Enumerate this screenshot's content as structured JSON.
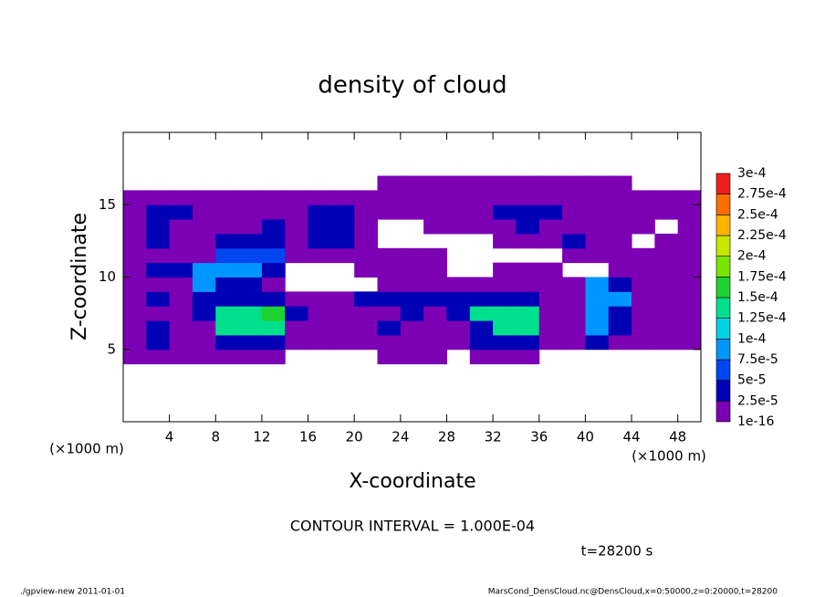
{
  "chart_data": {
    "type": "heatmap",
    "title": "density of cloud",
    "x_label": "X-coordinate",
    "y_label": "Z-coordinate",
    "x_unit": "(×1000 m)",
    "y_unit": "(×1000 m)",
    "contour_interval": "CONTOUR INTERVAL = 1.000E-04",
    "time_label": "t=28200 s",
    "footer_left": "./gpview-new   2011-01-01",
    "footer_right": "MarsCond_DensCloud.nc@DensCloud,x=0:50000,z=0:20000,t=28200",
    "xlim": [
      0,
      50
    ],
    "xticks": [
      4,
      8,
      12,
      16,
      20,
      24,
      28,
      32,
      36,
      40,
      44,
      48
    ],
    "ylim": [
      0,
      20
    ],
    "yticks": [
      5,
      10,
      15
    ],
    "x": [
      1,
      3,
      5,
      7,
      9,
      11,
      13,
      15,
      17,
      19,
      21,
      23,
      25,
      27,
      29,
      31,
      33,
      35,
      37,
      39,
      41,
      43,
      45,
      47,
      49
    ],
    "z": [
      4.5,
      5.5,
      6.5,
      7.5,
      8.5,
      9.5,
      10.5,
      11.5,
      12.5,
      13.5,
      14.5,
      15.5,
      16.5
    ],
    "values": [
      [
        1e-05,
        1e-05,
        1e-05,
        1e-05,
        1e-05,
        1e-05,
        1e-05,
        null,
        null,
        null,
        null,
        1e-05,
        1e-05,
        1e-05,
        null,
        1e-05,
        1e-05,
        1e-05,
        null,
        null,
        null,
        null,
        null,
        null,
        null
      ],
      [
        1e-05,
        4e-05,
        1e-05,
        1e-05,
        4e-05,
        4e-05,
        4e-05,
        1e-05,
        1e-05,
        1e-05,
        1e-05,
        1e-05,
        1e-05,
        1e-05,
        1e-05,
        4e-05,
        4e-05,
        4e-05,
        1e-05,
        1e-05,
        4e-05,
        1e-05,
        1e-05,
        1e-05,
        1e-05
      ],
      [
        1e-05,
        4e-05,
        1e-05,
        1e-05,
        0.00013,
        0.00013,
        0.00013,
        1e-05,
        1e-05,
        1e-05,
        1e-05,
        4e-05,
        1e-05,
        1e-05,
        1e-05,
        4e-05,
        0.00013,
        0.00013,
        1e-05,
        1e-05,
        9e-05,
        4e-05,
        1e-05,
        1e-05,
        1e-05
      ],
      [
        1e-05,
        1e-05,
        1e-05,
        4e-05,
        0.00013,
        0.00013,
        0.00016,
        4e-05,
        1e-05,
        1e-05,
        1e-05,
        1e-05,
        4e-05,
        1e-05,
        4e-05,
        0.00013,
        0.00013,
        0.00013,
        1e-05,
        1e-05,
        9e-05,
        4e-05,
        1e-05,
        1e-05,
        1e-05
      ],
      [
        1e-05,
        4e-05,
        1e-05,
        4e-05,
        4e-05,
        4e-05,
        4e-05,
        1e-05,
        1e-05,
        1e-05,
        4e-05,
        4e-05,
        4e-05,
        4e-05,
        4e-05,
        4e-05,
        4e-05,
        4e-05,
        1e-05,
        1e-05,
        9e-05,
        9e-05,
        1e-05,
        1e-05,
        1e-05
      ],
      [
        1e-05,
        1e-05,
        1e-05,
        9e-05,
        4e-05,
        4e-05,
        1e-05,
        null,
        null,
        null,
        null,
        1e-05,
        1e-05,
        1e-05,
        1e-05,
        1e-05,
        1e-05,
        1e-05,
        1e-05,
        1e-05,
        9e-05,
        4e-05,
        1e-05,
        1e-05,
        1e-05
      ],
      [
        1e-05,
        4e-05,
        4e-05,
        9e-05,
        9e-05,
        9e-05,
        4e-05,
        null,
        null,
        null,
        1e-05,
        1e-05,
        1e-05,
        1e-05,
        null,
        null,
        1e-05,
        1e-05,
        1e-05,
        null,
        null,
        1e-05,
        1e-05,
        1e-05,
        1e-05
      ],
      [
        1e-05,
        1e-05,
        1e-05,
        1e-05,
        6e-05,
        6e-05,
        6e-05,
        1e-05,
        1e-05,
        1e-05,
        1e-05,
        1e-05,
        1e-05,
        1e-05,
        null,
        null,
        null,
        null,
        null,
        1e-05,
        1e-05,
        1e-05,
        1e-05,
        1e-05,
        1e-05
      ],
      [
        1e-05,
        4e-05,
        1e-05,
        1e-05,
        4e-05,
        4e-05,
        4e-05,
        1e-05,
        4e-05,
        4e-05,
        1e-05,
        null,
        null,
        null,
        null,
        null,
        1e-05,
        1e-05,
        1e-05,
        4e-05,
        1e-05,
        1e-05,
        null,
        1e-05,
        1e-05
      ],
      [
        1e-05,
        4e-05,
        1e-05,
        1e-05,
        1e-05,
        1e-05,
        4e-05,
        1e-05,
        4e-05,
        4e-05,
        1e-05,
        null,
        null,
        1e-05,
        1e-05,
        1e-05,
        1e-05,
        4e-05,
        1e-05,
        1e-05,
        1e-05,
        1e-05,
        1e-05,
        null,
        1e-05
      ],
      [
        1e-05,
        4e-05,
        4e-05,
        1e-05,
        1e-05,
        1e-05,
        1e-05,
        1e-05,
        4e-05,
        4e-05,
        1e-05,
        1e-05,
        1e-05,
        1e-05,
        1e-05,
        1e-05,
        4e-05,
        4e-05,
        4e-05,
        1e-05,
        1e-05,
        1e-05,
        1e-05,
        1e-05,
        1e-05
      ],
      [
        1e-05,
        1e-05,
        1e-05,
        1e-05,
        1e-05,
        1e-05,
        1e-05,
        1e-05,
        1e-05,
        1e-05,
        1e-05,
        1e-05,
        1e-05,
        1e-05,
        1e-05,
        1e-05,
        1e-05,
        1e-05,
        1e-05,
        1e-05,
        1e-05,
        1e-05,
        1e-05,
        1e-05,
        1e-05
      ],
      [
        null,
        null,
        null,
        null,
        null,
        null,
        null,
        null,
        null,
        null,
        null,
        1e-05,
        1e-05,
        1e-05,
        1e-05,
        1e-05,
        1e-05,
        1e-05,
        1e-05,
        1e-05,
        1e-05,
        1e-05,
        null,
        null,
        null
      ]
    ],
    "colorbar": {
      "levels": [
        {
          "value": 1e-16,
          "label": "1e-16"
        },
        {
          "value": 2.5e-05,
          "label": "2.5e-5"
        },
        {
          "value": 5e-05,
          "label": "5e-5"
        },
        {
          "value": 7.5e-05,
          "label": "7.5e-5"
        },
        {
          "value": 0.0001,
          "label": "1e-4"
        },
        {
          "value": 0.000125,
          "label": "1.25e-4"
        },
        {
          "value": 0.00015,
          "label": "1.5e-4"
        },
        {
          "value": 0.000175,
          "label": "1.75e-4"
        },
        {
          "value": 0.0002,
          "label": "2e-4"
        },
        {
          "value": 0.000225,
          "label": "2.25e-4"
        },
        {
          "value": 0.00025,
          "label": "2.5e-4"
        },
        {
          "value": 0.000275,
          "label": "2.75e-4"
        },
        {
          "value": 0.0003,
          "label": "3e-4"
        }
      ],
      "colors": [
        "#7c00b4",
        "#0000b4",
        "#0046f0",
        "#0096ff",
        "#00d2e6",
        "#00e08c",
        "#1ed232",
        "#78e600",
        "#c8e600",
        "#ffb400",
        "#ff6e00",
        "#f01e1e",
        "#ff8c8c"
      ]
    }
  }
}
